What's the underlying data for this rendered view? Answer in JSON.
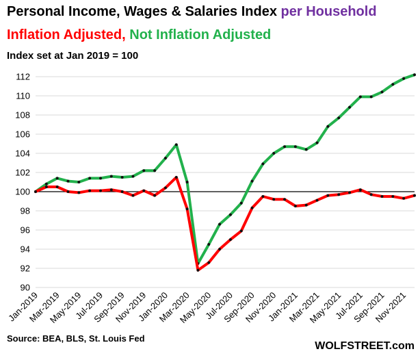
{
  "title": {
    "part1": "Personal Income, Wages & Salaries Index ",
    "part2": "per Household",
    "part2_color": "#7030a0",
    "line2_red": "Inflation Adjusted,",
    "line2_green": "Not Inflation Adjusted",
    "red_color": "#ff0000",
    "green_color": "#22b14c",
    "subtitle": "Index set at Jan 2019 = 100"
  },
  "source": "Source: BEA, BLS, St. Louis Fed",
  "watermark": "WOLFSTREET.com",
  "chart_data": {
    "type": "line",
    "ylim": [
      90,
      112
    ],
    "yticks": [
      90,
      92,
      94,
      96,
      98,
      100,
      102,
      104,
      106,
      108,
      110,
      112
    ],
    "reference_line": 100,
    "x_count": 36,
    "x_labels": [
      "Jan-2019",
      "Mar-2019",
      "May-2019",
      "Jul-2019",
      "Sep-2019",
      "Nov-2019",
      "Jan-2020",
      "Mar-2020",
      "May-2020",
      "Jul-2020",
      "Sep-2020",
      "Nov-2020",
      "Jan-2021",
      "Mar-2021",
      "May-2021",
      "Jul-2021",
      "Sep-2021",
      "Nov-2021"
    ],
    "series": [
      {
        "color": "#22b14c",
        "values": [
          100.0,
          100.8,
          101.4,
          101.1,
          101.0,
          101.4,
          101.4,
          101.6,
          101.5,
          101.6,
          102.2,
          102.2,
          103.5,
          104.9,
          101.0,
          92.5,
          94.5,
          96.6,
          97.6,
          98.8,
          101.1,
          102.9,
          104.0,
          104.7,
          104.7,
          104.4,
          105.1,
          106.8,
          107.7,
          108.8,
          109.9,
          109.9,
          110.4,
          111.2,
          111.8,
          112.2
        ]
      },
      {
        "color": "#ff0000",
        "values": [
          100.0,
          100.5,
          100.5,
          100.0,
          99.9,
          100.1,
          100.1,
          100.2,
          100.0,
          99.6,
          100.1,
          99.6,
          100.4,
          101.5,
          98.2,
          91.8,
          92.6,
          94.0,
          95.0,
          95.9,
          98.3,
          99.5,
          99.2,
          99.2,
          98.5,
          98.6,
          99.1,
          99.6,
          99.7,
          99.9,
          100.2,
          99.7,
          99.5,
          99.5,
          99.3,
          99.6
        ]
      }
    ]
  }
}
